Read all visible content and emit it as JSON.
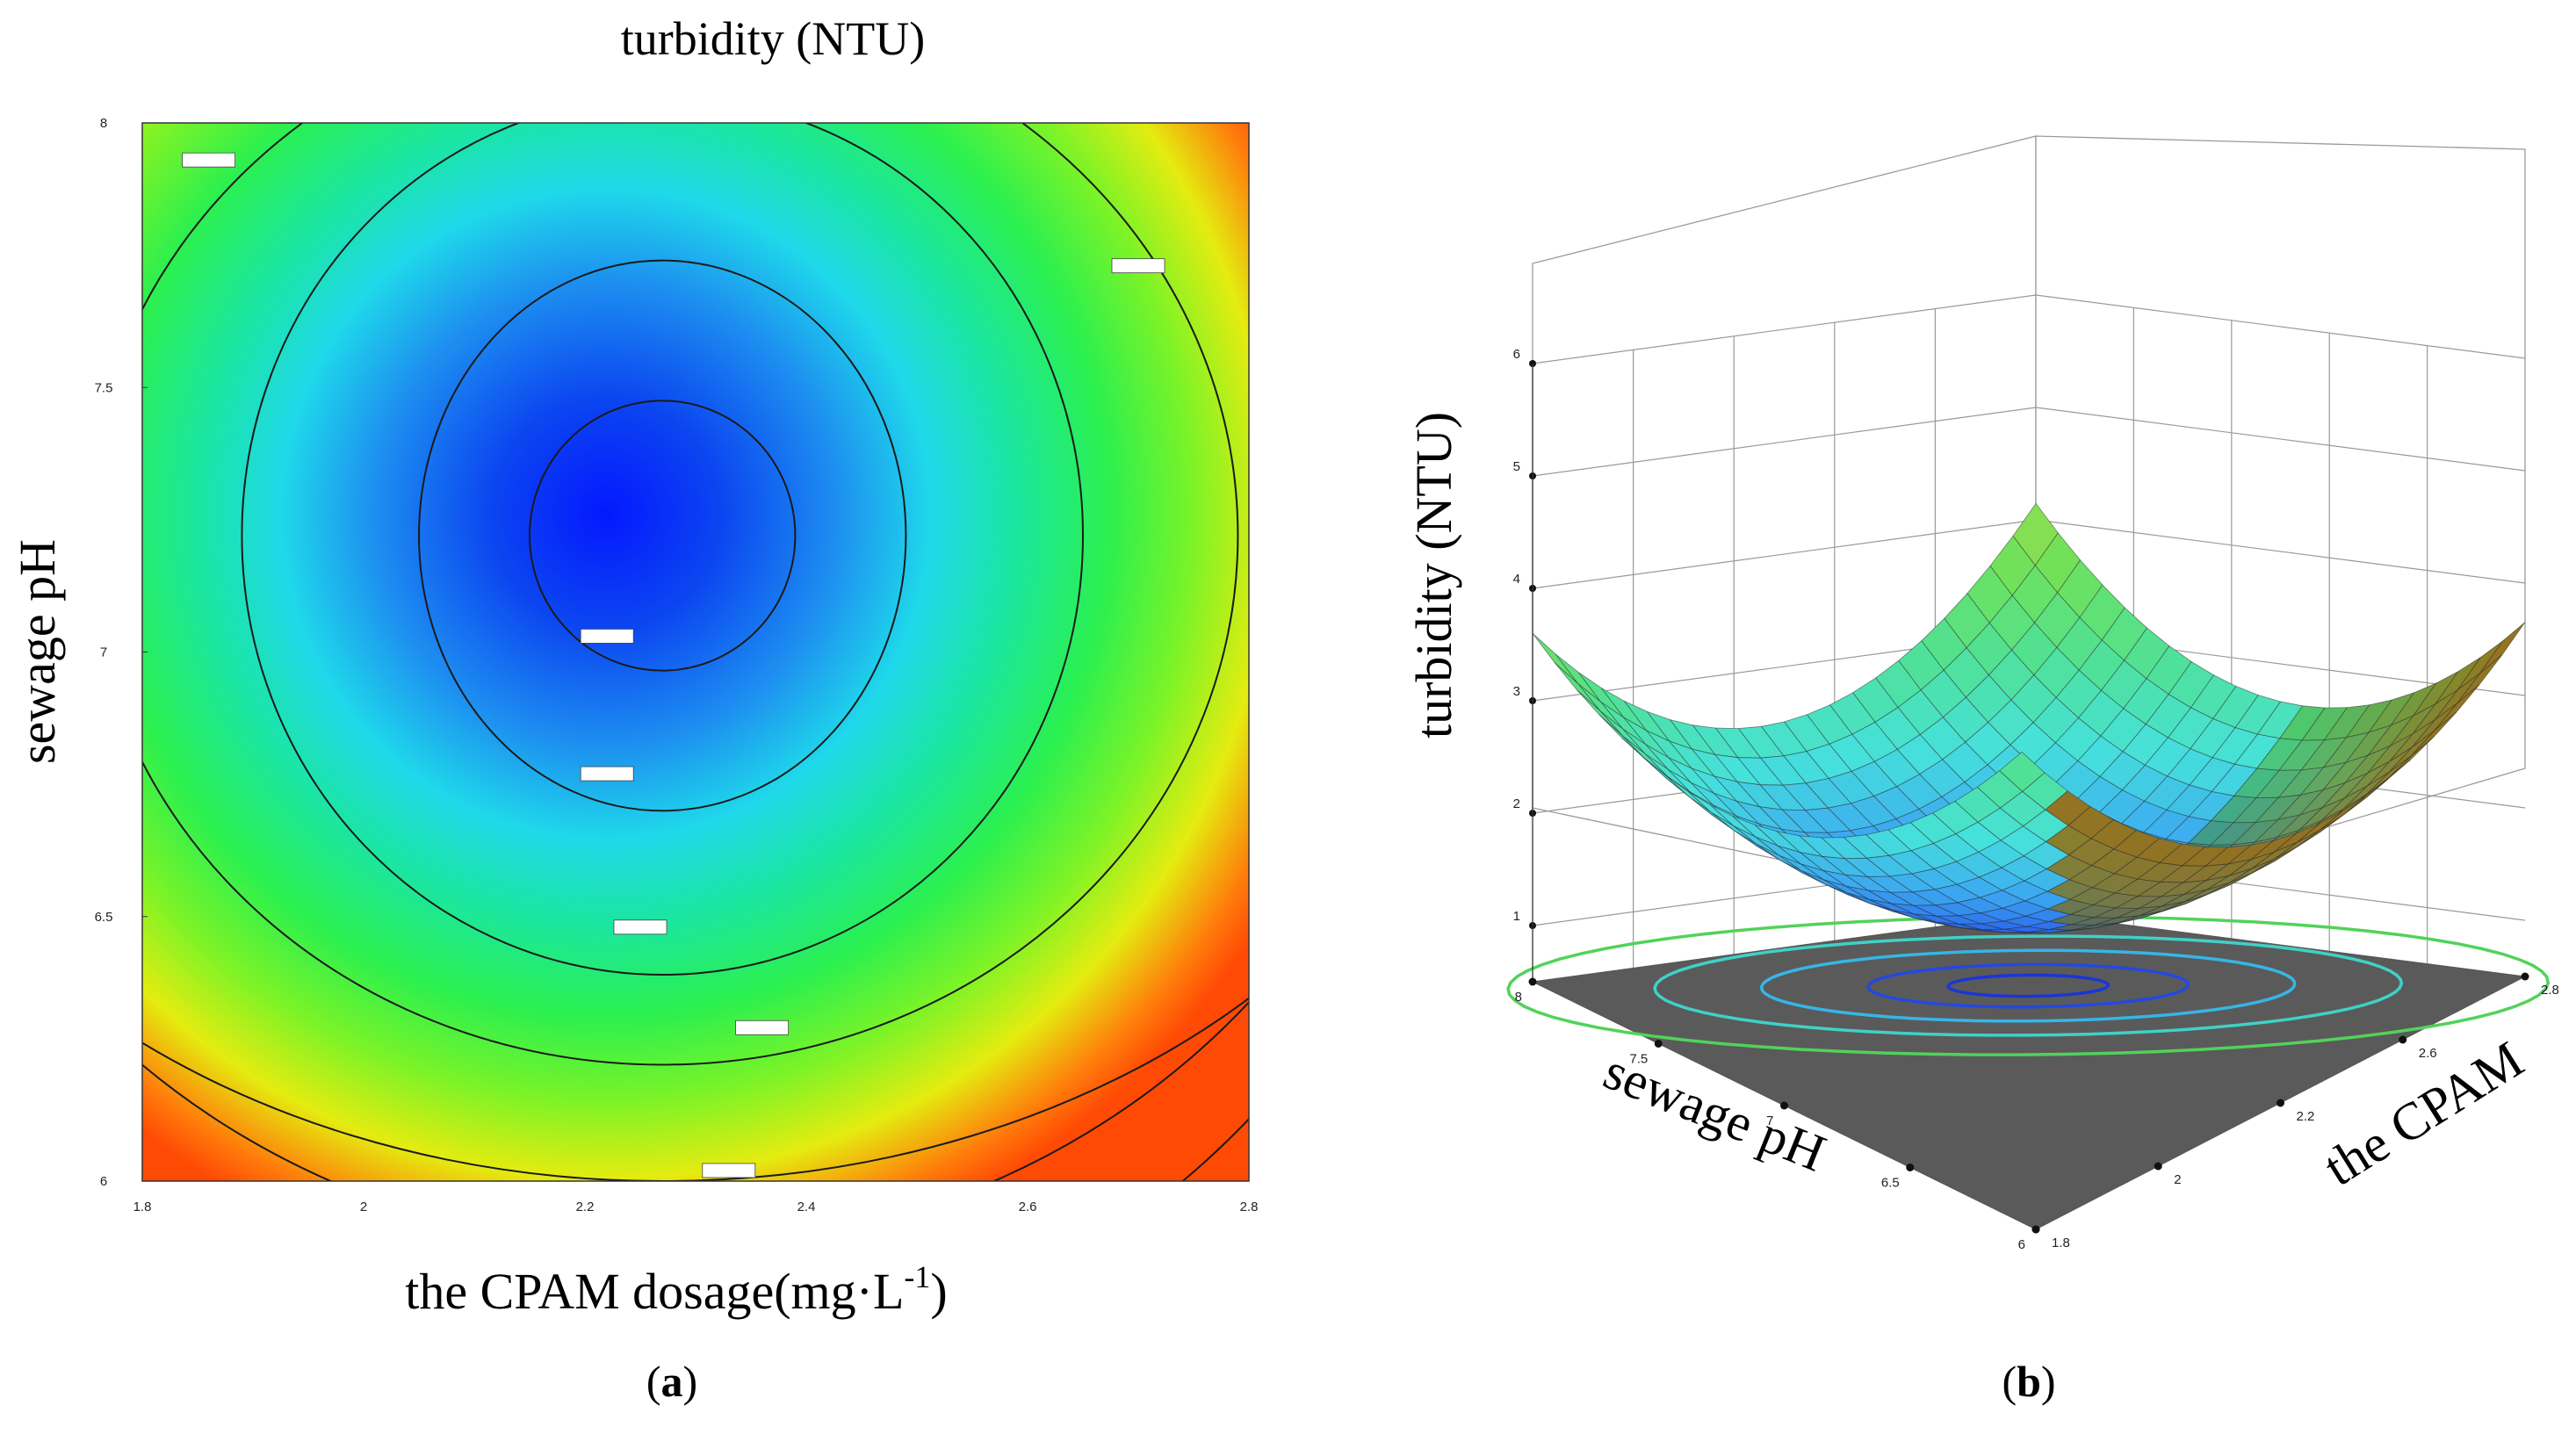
{
  "chart_data": [
    {
      "type": "heatmap",
      "panel_label": "a",
      "title": "turbidity (NTU)",
      "xlabel": "the CPAM dosage(mg·L",
      "xlabel_sup": "-1",
      "xlabel_close": ")",
      "ylabel": "sewage pH",
      "xlim": [
        1.8,
        2.8
      ],
      "ylim": [
        6,
        8
      ],
      "x_ticks": [
        "1.8",
        "2",
        "2.2",
        "2.4",
        "2.6",
        "2.8"
      ],
      "y_ticks": [
        "6",
        "6.5",
        "7",
        "7.5",
        "8"
      ],
      "contour_style": "filled contour with iso-lines (blue = low, green/yellow/red = high)",
      "surface_center": {
        "x": 2.27,
        "y": 7.22
      },
      "contours": [
        {
          "a": 0.12,
          "b": 0.255,
          "label_at": {
            "x": 2.22,
            "y": 7.03
          }
        },
        {
          "a": 0.22,
          "b": 0.52,
          "label_at": {
            "x": 2.22,
            "y": 6.77
          }
        },
        {
          "a": 0.38,
          "b": 0.83,
          "label_at": {
            "x": 2.25,
            "y": 6.48
          }
        },
        {
          "a": 0.52,
          "b": 1.0,
          "label_at": {
            "x": 2.36,
            "y": 6.29
          }
        },
        {
          "a": 0.76,
          "b": 1.22,
          "label_at": {
            "x": 2.33,
            "y": 6.02
          }
        },
        {
          "a": 0.74,
          "b": 1.58,
          "label_at": {
            "x": 1.86,
            "y": 7.93
          }
        },
        {
          "a": 0.7,
          "b": 1.35,
          "label_at": {
            "x": 2.7,
            "y": 7.73
          }
        }
      ]
    },
    {
      "type": "surface",
      "panel_label": "b",
      "zlabel": "turbidity (NTU)",
      "xlabel": "the CPAM",
      "ylabel": "sewage pH",
      "x_ticks": [
        "1.8",
        "2",
        "2.2",
        "2.6",
        "2.8"
      ],
      "y_ticks": [
        "6",
        "6.5",
        "7",
        "7.5",
        "8"
      ],
      "z_ticks": [
        "1",
        "2",
        "3",
        "4",
        "5",
        "6"
      ],
      "zlim": [
        0.5,
        6
      ],
      "colormap": "blue (low) to green/orange (high)",
      "floor_color": "#5a5a5a",
      "floor_contours": [
        {
          "r": 0.12,
          "color": "#1a35d8"
        },
        {
          "r": 0.24,
          "color": "#2448e0"
        },
        {
          "r": 0.4,
          "color": "#35b6e6"
        },
        {
          "r": 0.56,
          "color": "#3fd1c7"
        },
        {
          "r": 0.78,
          "color": "#52d25a"
        }
      ]
    }
  ]
}
